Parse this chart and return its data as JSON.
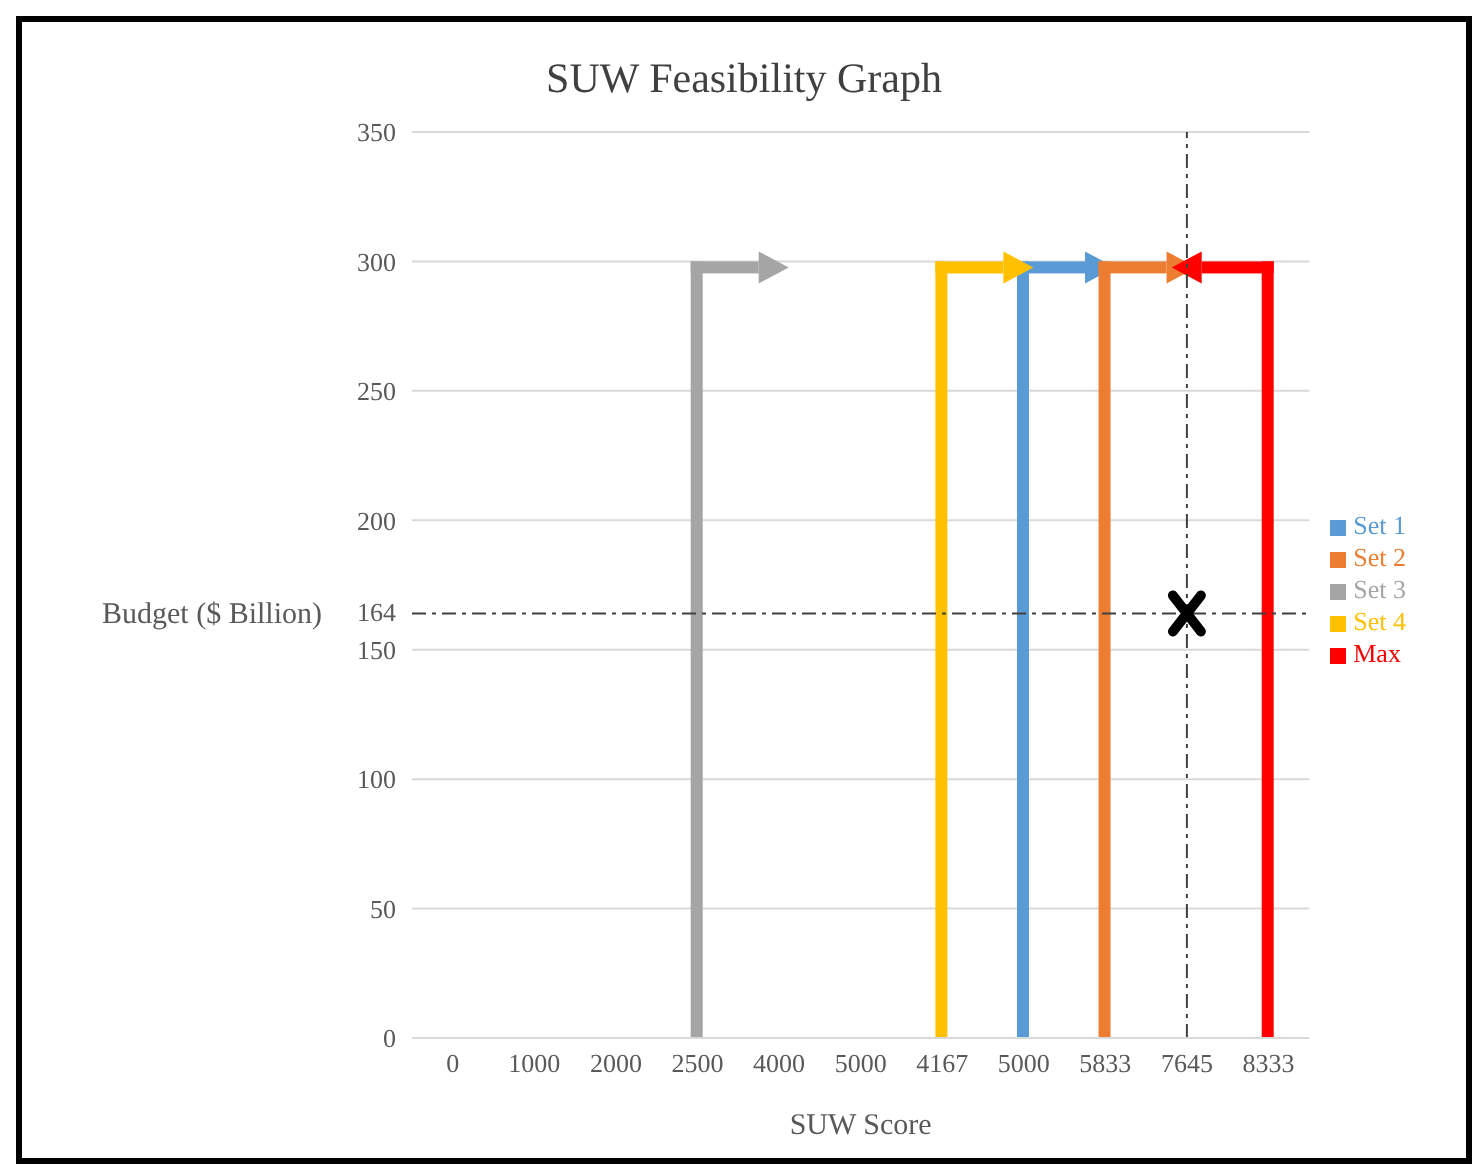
{
  "chart_data": {
    "type": "bar",
    "title": "SUW Feasibility Graph",
    "xlabel": "SUW Score",
    "ylabel": "Budget ($ Billion)",
    "categories": [
      "0",
      "1000",
      "2000",
      "2500",
      "4000",
      "5000",
      "4167",
      "5000",
      "5833",
      "7645",
      "8333"
    ],
    "stacked": true,
    "series": [
      {
        "name": "Set 1",
        "color": "#5b9bd5",
        "values": [
          null,
          null,
          null,
          null,
          null,
          null,
          null,
          300,
          null,
          null,
          null
        ]
      },
      {
        "name": "Set 2",
        "color": "#ed7d31",
        "values": [
          null,
          null,
          null,
          null,
          null,
          null,
          null,
          null,
          300,
          null,
          null
        ]
      },
      {
        "name": "Set 3",
        "color": "#a5a5a5",
        "values": [
          null,
          null,
          null,
          300,
          null,
          null,
          null,
          null,
          null,
          null,
          null
        ]
      },
      {
        "name": "Set 4",
        "color": "#ffc000",
        "values": [
          null,
          null,
          null,
          null,
          null,
          null,
          300,
          null,
          null,
          null,
          null
        ]
      },
      {
        "name": "Max",
        "color": "#ff0000",
        "values": [
          null,
          null,
          null,
          null,
          null,
          null,
          null,
          null,
          null,
          null,
          300
        ]
      },
      {
        "type": "scatter",
        "color": "#000000",
        "values": [
          null,
          null,
          null,
          null,
          null,
          null,
          null,
          null,
          null,
          164,
          null
        ],
        "marker": "cross"
      }
    ],
    "ylim": [
      0,
      350
    ],
    "yticks": [
      0,
      50,
      100,
      150,
      200,
      250,
      300,
      350
    ],
    "grid": "y",
    "legend": "right",
    "ref_lines": [
      {
        "axis": "y",
        "value": 164,
        "label": "164",
        "line_style": "dashed"
      },
      {
        "axis": "x",
        "value": "7645",
        "line_style": "dashed"
      }
    ]
  }
}
